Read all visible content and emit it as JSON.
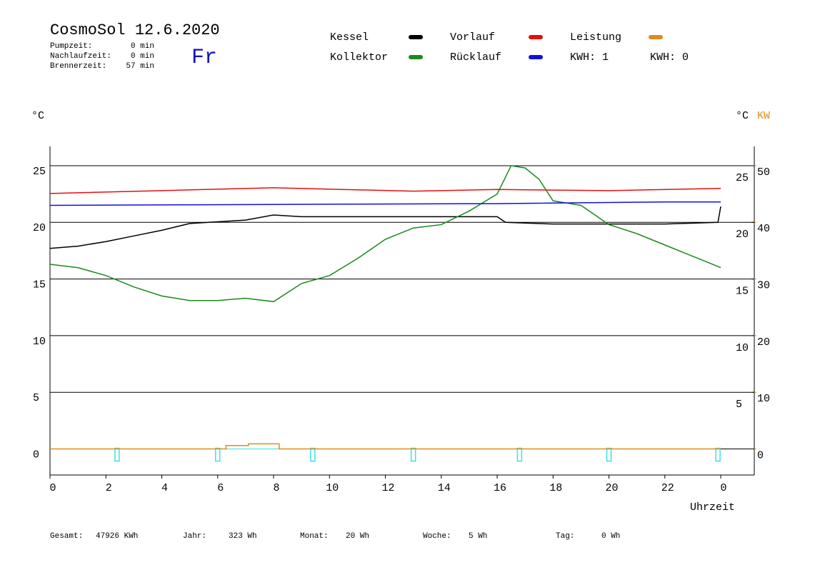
{
  "header": {
    "title": "CosmoSol 12.6.2020",
    "weekday": "Fr",
    "stats": [
      {
        "label": "Pumpzeit:",
        "value": "0 min"
      },
      {
        "label": "Nachlaufzeit:",
        "value": "0 min"
      },
      {
        "label": "Brennerzeit:",
        "value": "57 min"
      }
    ]
  },
  "legend_extra": [
    {
      "text": "KWH: 1",
      "color": "#e08a1e"
    },
    {
      "text": "KWH: 0",
      "color": "#8a2be2"
    }
  ],
  "footer": [
    {
      "label": "Gesamt:",
      "value": "47926 KWh"
    },
    {
      "label": "Jahr:",
      "value": "323 Wh"
    },
    {
      "label": "Monat:",
      "value": "20 Wh"
    },
    {
      "label": "Woche:",
      "value": "5 Wh"
    },
    {
      "label": "Tag:",
      "value": "0 Wh"
    }
  ],
  "chart_data": {
    "type": "line",
    "y_label": "°C",
    "y2_label": "°C",
    "y3_label": "KW",
    "x_label": "Uhrzeit",
    "xlim": [
      0,
      25.2
    ],
    "xticks": [
      0,
      2,
      4,
      6,
      8,
      10,
      12,
      14,
      16,
      18,
      20,
      22,
      {
        "value": 24,
        "label": "0"
      }
    ],
    "ylim": [
      -2.3,
      26.7
    ],
    "yticks": [
      0,
      5,
      10,
      15,
      20,
      25
    ],
    "yticks_right": [
      5,
      10,
      15,
      20,
      25
    ],
    "y2lim": [
      -4.6,
      53.4
    ],
    "y2ticks": [
      0,
      10,
      20,
      30,
      40,
      50
    ],
    "y2_color": "#e08a1e",
    "grid": true,
    "pump_marks_x": [
      2.4,
      6.0,
      9.4,
      13.0,
      16.8,
      20.0,
      23.9
    ],
    "pump_color": "#40e0e0",
    "series": [
      {
        "name": "Kessel",
        "color": "#000000",
        "x": [
          0,
          1,
          2,
          3,
          4,
          5,
          7,
          8,
          9,
          12,
          16,
          16.3,
          18,
          20,
          22,
          23.9,
          24
        ],
        "values": [
          17.7,
          17.9,
          18.3,
          18.8,
          19.3,
          19.9,
          20.2,
          20.65,
          20.5,
          20.5,
          20.5,
          20.0,
          19.85,
          19.85,
          19.85,
          20.0,
          21.4
        ]
      },
      {
        "name": "Kollektor",
        "color": "#1a8a1a",
        "x": [
          0,
          1,
          2,
          3,
          4,
          5,
          6,
          7,
          8,
          9,
          10,
          11,
          12,
          13,
          14,
          15,
          16,
          16.5,
          17,
          17.5,
          18,
          19,
          20,
          21,
          22,
          23,
          24
        ],
        "values": [
          16.3,
          16.0,
          15.3,
          14.3,
          13.5,
          13.1,
          13.1,
          13.3,
          13.0,
          14.6,
          15.3,
          16.8,
          18.5,
          19.5,
          19.8,
          21.0,
          22.5,
          25.0,
          24.8,
          23.8,
          21.9,
          21.5,
          19.8,
          19.0,
          18.0,
          17.0,
          16.0
        ]
      },
      {
        "name": "Vorlauf",
        "color": "#e01010",
        "x": [
          0,
          4,
          8,
          13,
          16,
          20,
          24
        ],
        "values": [
          22.55,
          22.8,
          23.05,
          22.75,
          22.9,
          22.8,
          23.0
        ]
      },
      {
        "name": "Rücklauf",
        "color": "#1010e0",
        "x": [
          0,
          5,
          10,
          16,
          22,
          24
        ],
        "values": [
          21.5,
          21.55,
          21.6,
          21.65,
          21.8,
          21.8
        ]
      },
      {
        "name": "Leistung",
        "color": "#e08a1e",
        "axis": "y2",
        "x": [
          0,
          6.3,
          6.3,
          7.1,
          7.1,
          8.2,
          8.2,
          24
        ],
        "values": [
          0,
          0,
          0.6,
          0.6,
          0.9,
          0.9,
          0,
          0
        ]
      }
    ]
  }
}
